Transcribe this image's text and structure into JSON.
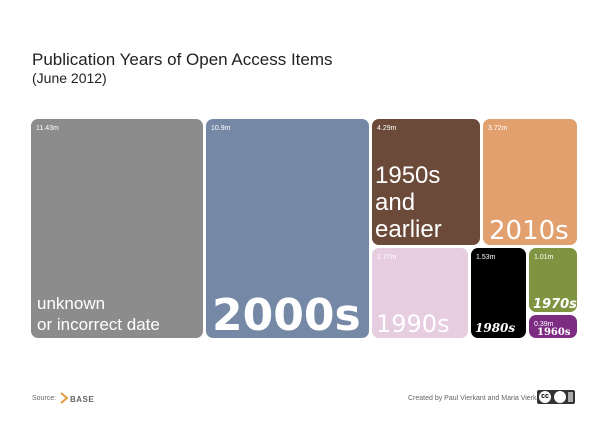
{
  "title": "Publication Years of Open Access Items",
  "subtitle": "(June 2012)",
  "chart_data": {
    "type": "treemap",
    "title": "Publication Years of Open Access Items",
    "subtitle": "(June 2012)",
    "unit": "m",
    "items": [
      {
        "label_lines": [
          "unknown",
          "or incorrect date"
        ],
        "value_text": "11.43m",
        "value": 11.43,
        "color": "#8c8c8c",
        "text_color": "#ffffff"
      },
      {
        "label_lines": [
          "2000s"
        ],
        "value_text": "10.9m",
        "value": 10.9,
        "color": "#7589a6",
        "text_color": "#ffffff"
      },
      {
        "label_lines": [
          "1950s",
          "and",
          "earlier"
        ],
        "value_text": "4.29m",
        "value": 4.29,
        "color": "#6b4a3a",
        "text_color": "#ffffff"
      },
      {
        "label_lines": [
          "2010s"
        ],
        "value_text": "3.72m",
        "value": 3.72,
        "color": "#e2a06e",
        "text_color": "#ffffff"
      },
      {
        "label_lines": [
          "1990s"
        ],
        "value_text": "2.77m",
        "value": 2.77,
        "color": "#e6cde0",
        "text_color": "#ffffff"
      },
      {
        "label_lines": [
          "1980s"
        ],
        "value_text": "1.53m",
        "value": 1.53,
        "color": "#000000",
        "text_color": "#ffffff"
      },
      {
        "label_lines": [
          "1970s"
        ],
        "value_text": "1.01m",
        "value": 1.01,
        "color": "#7f9440",
        "text_color": "#ffffff"
      },
      {
        "label_lines": [
          "1960s"
        ],
        "value_text": "0.39m",
        "value": 0.39,
        "color": "#7c2d82",
        "text_color": "#ffffff"
      }
    ]
  },
  "footer": {
    "source_label": "Source:",
    "source_name": "BASE",
    "credit": "Created by Paul Vierkant and Maria Vierkant"
  }
}
